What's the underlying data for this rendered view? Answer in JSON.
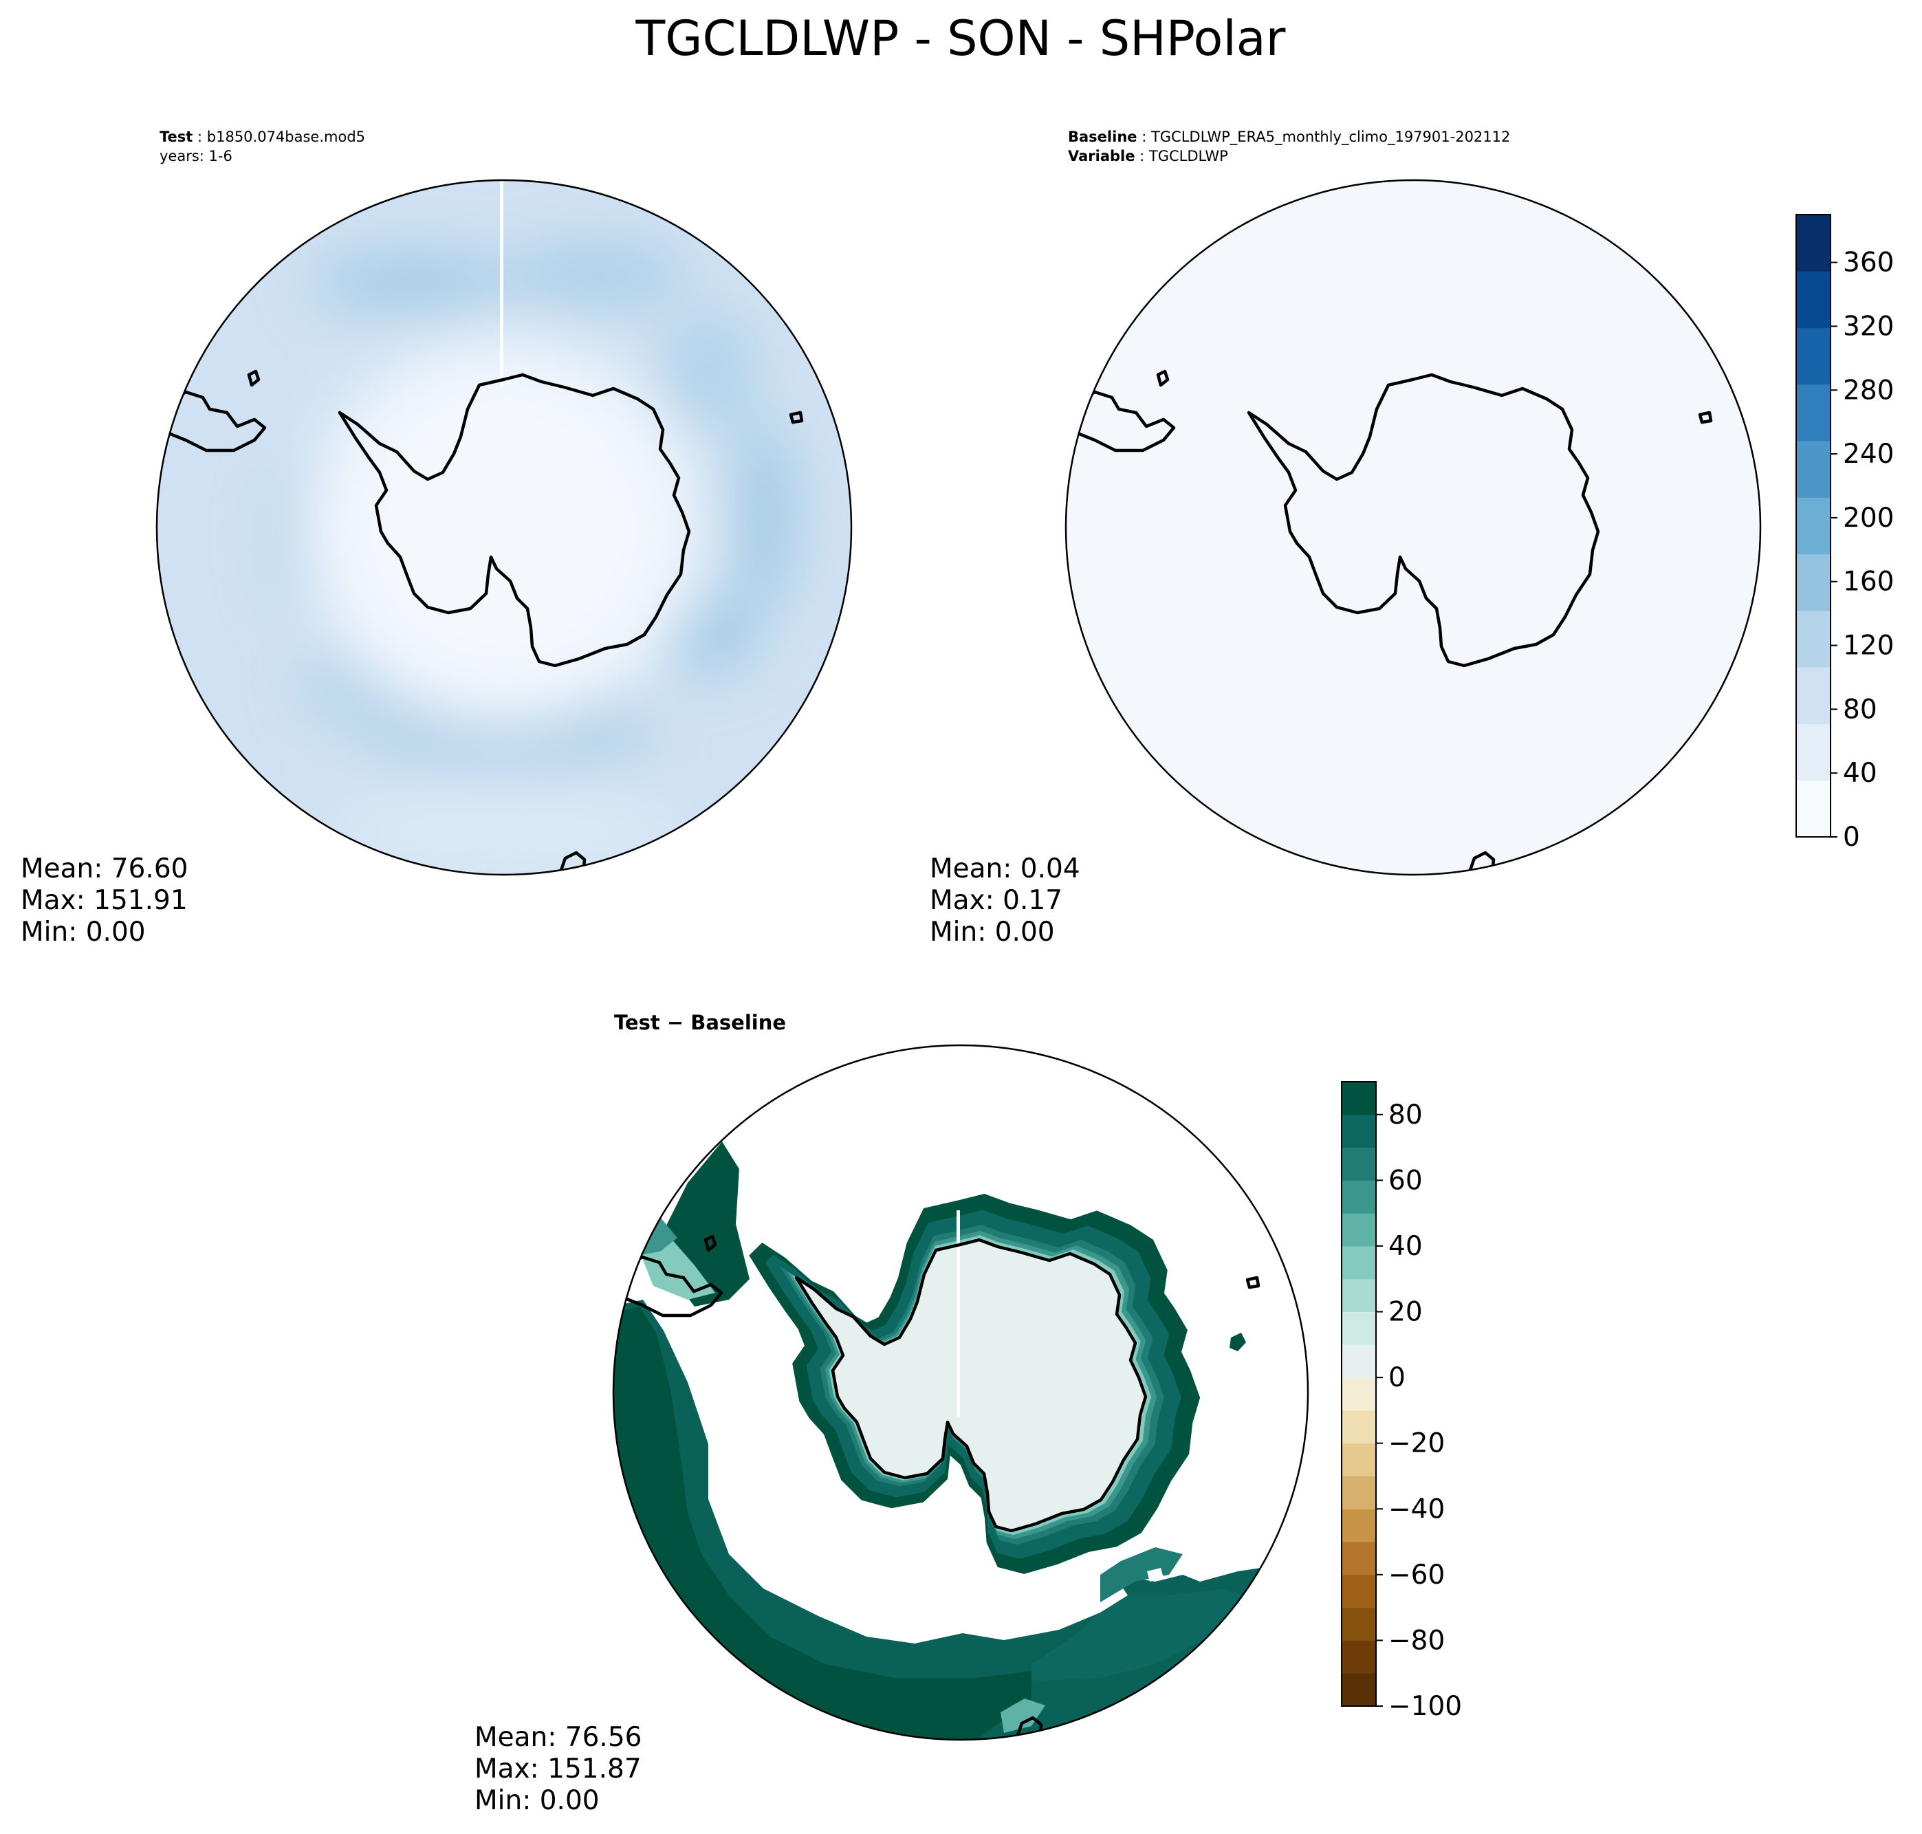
{
  "suptitle": "TGCLDLWP - SON - SHPolar",
  "panels": {
    "test": {
      "label_bold": "Test",
      "label_value": "b1850.074base.mod5",
      "line2": "years: 1-6",
      "mean": "Mean: 76.60",
      "max": "Max: 151.91",
      "min": "Min:  0.00"
    },
    "baseline": {
      "label_bold": "Baseline",
      "label_value": "TGCLDLWP_ERA5_monthly_climo_197901-202112",
      "line2_bold": "Variable",
      "line2_value": "TGCLDLWP",
      "mean": "Mean:  0.04",
      "max": "Max:  0.17",
      "min": "Min:  0.00"
    },
    "diff": {
      "title": "Test − Baseline",
      "mean": "Mean: 76.56",
      "max": "Max: 151.87",
      "min": "Min:  0.00"
    }
  },
  "chart_data": [
    {
      "type": "heatmap",
      "panel": "Test",
      "projection": "south polar stereographic",
      "field": "TGCLDLWP",
      "season": "SON",
      "stats": {
        "mean": 76.6,
        "max": 151.91,
        "min": 0.0
      },
      "colormap": "Blues"
    },
    {
      "type": "heatmap",
      "panel": "Baseline",
      "projection": "south polar stereographic",
      "field": "TGCLDLWP",
      "season": "SON",
      "stats": {
        "mean": 0.04,
        "max": 0.17,
        "min": 0.0
      },
      "colormap": "Blues",
      "colorbar": {
        "range": [
          0,
          390
        ],
        "ticks": [
          0,
          40,
          80,
          120,
          160,
          200,
          240,
          280,
          320,
          360
        ],
        "tick_labels": [
          "0",
          "40",
          "80",
          "120",
          "160",
          "200",
          "240",
          "280",
          "320",
          "360"
        ],
        "levels": 20,
        "colors": [
          "#f7fbff",
          "#e3eef9",
          "#cfe1f2",
          "#b5d4e9",
          "#93c3df",
          "#6daed5",
          "#4b97c9",
          "#2f7fbc",
          "#1764ab",
          "#084a91",
          "#08306b"
        ]
      }
    },
    {
      "type": "heatmap",
      "panel": "Test - Baseline",
      "projection": "south polar stereographic",
      "field": "TGCLDLWP difference",
      "season": "SON",
      "stats": {
        "mean": 76.56,
        "max": 151.87,
        "min": 0.0
      },
      "colormap": "BrBG",
      "colorbar": {
        "range": [
          -100,
          90
        ],
        "ticks": [
          -100,
          -80,
          -60,
          -40,
          -20,
          0,
          20,
          40,
          60,
          80
        ],
        "tick_labels": [
          "−100",
          "−80",
          "−60",
          "−40",
          "−20",
          "0",
          "20",
          "40",
          "60",
          "80"
        ],
        "levels": [
          -100,
          -90,
          -80,
          -70,
          -60,
          -50,
          -40,
          -30,
          -20,
          -10,
          0,
          10,
          20,
          30,
          40,
          50,
          60,
          70,
          80,
          90
        ],
        "colors": [
          "#5a3006",
          "#6e3b09",
          "#86500d",
          "#a06016",
          "#b4762b",
          "#c89445",
          "#d7b06d",
          "#e6c98f",
          "#efdeb1",
          "#f5ecd6",
          "#e6f1ef",
          "#cdeae5",
          "#a9dbd2",
          "#84cabd",
          "#5fb2a6",
          "#3b978d",
          "#1f7d75",
          "#0c6860",
          "#01533f"
        ]
      }
    }
  ]
}
